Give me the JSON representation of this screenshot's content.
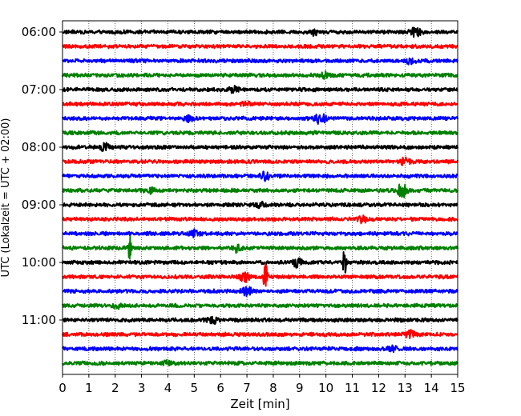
{
  "chart_data": {
    "type": "line",
    "xlabel": "Zeit  [min]",
    "ylabel": "UTC (Lokalzeit = UTC + 02:00)",
    "xlim": [
      0,
      15
    ],
    "x_ticks": [
      "0",
      "1",
      "2",
      "3",
      "4",
      "5",
      "6",
      "7",
      "8",
      "9",
      "10",
      "11",
      "12",
      "13",
      "14",
      "15"
    ],
    "y_ticks": [
      "06:00",
      "07:00",
      "08:00",
      "09:00",
      "10:00",
      "11:00"
    ],
    "grid": "vertical dotted at each minute",
    "trace_colors": [
      "#000000",
      "#ff0000",
      "#0000ff",
      "#008000"
    ],
    "traces": [
      {
        "start": "06:00",
        "events": [
          {
            "t": 9.6,
            "a": 0.2
          },
          {
            "t": 13.4,
            "a": 0.3
          }
        ]
      },
      {
        "start": "06:15",
        "events": []
      },
      {
        "start": "06:30",
        "events": [
          {
            "t": 13.2,
            "a": 0.15
          }
        ]
      },
      {
        "start": "06:45",
        "events": [
          {
            "t": 10.0,
            "a": 0.2
          }
        ]
      },
      {
        "start": "07:00",
        "events": [
          {
            "t": 6.5,
            "a": 0.2
          }
        ]
      },
      {
        "start": "07:15",
        "events": [
          {
            "t": 7.0,
            "a": 0.15
          }
        ]
      },
      {
        "start": "07:30",
        "events": [
          {
            "t": 9.8,
            "a": 0.4
          },
          {
            "t": 4.8,
            "a": 0.2
          }
        ]
      },
      {
        "start": "07:45",
        "events": []
      },
      {
        "start": "08:00",
        "events": [
          {
            "t": 1.6,
            "a": 0.2
          }
        ]
      },
      {
        "start": "08:15",
        "events": [
          {
            "t": 13.0,
            "a": 0.25
          }
        ]
      },
      {
        "start": "08:30",
        "events": [
          {
            "t": 7.7,
            "a": 0.25
          }
        ]
      },
      {
        "start": "08:45",
        "events": [
          {
            "t": 12.9,
            "a": 0.45
          },
          {
            "t": 3.3,
            "a": 0.2
          }
        ]
      },
      {
        "start": "09:00",
        "events": [
          {
            "t": 7.5,
            "a": 0.15
          }
        ]
      },
      {
        "start": "09:15",
        "events": [
          {
            "t": 11.4,
            "a": 0.2
          }
        ]
      },
      {
        "start": "09:30",
        "events": [
          {
            "t": 5.0,
            "a": 0.2
          }
        ]
      },
      {
        "start": "09:45",
        "events": [
          {
            "t": 2.55,
            "a": 1.1
          },
          {
            "t": 6.6,
            "a": 0.25
          }
        ]
      },
      {
        "start": "10:00",
        "events": [
          {
            "t": 10.7,
            "a": 0.9
          },
          {
            "t": 8.9,
            "a": 0.3
          }
        ]
      },
      {
        "start": "10:15",
        "events": [
          {
            "t": 7.7,
            "a": 1.6
          },
          {
            "t": 6.9,
            "a": 0.3
          }
        ]
      },
      {
        "start": "10:30",
        "events": [
          {
            "t": 7.0,
            "a": 0.3
          }
        ]
      },
      {
        "start": "10:45",
        "events": [
          {
            "t": 2.1,
            "a": 0.15
          }
        ]
      },
      {
        "start": "11:00",
        "events": [
          {
            "t": 5.7,
            "a": 0.25
          }
        ]
      },
      {
        "start": "11:15",
        "events": [
          {
            "t": 13.2,
            "a": 0.35
          }
        ]
      },
      {
        "start": "11:30",
        "events": [
          {
            "t": 12.5,
            "a": 0.15
          }
        ]
      },
      {
        "start": "11:45",
        "events": [
          {
            "t": 4.0,
            "a": 0.15
          }
        ]
      }
    ]
  }
}
